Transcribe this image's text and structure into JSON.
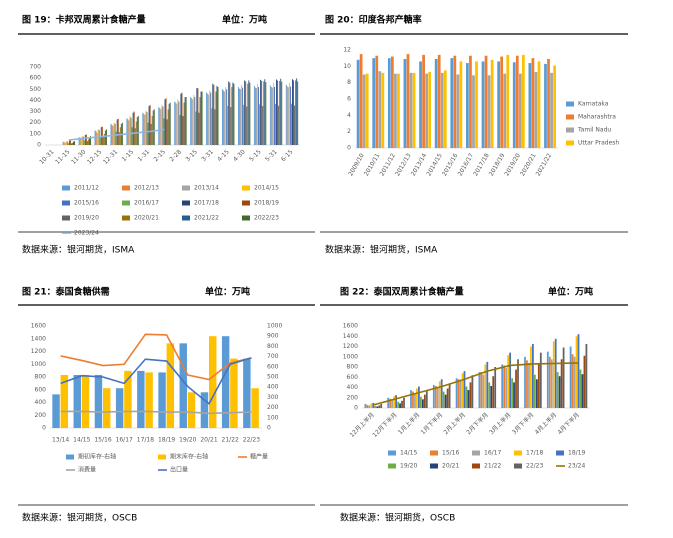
{
  "chart_data": [
    {
      "type": "bar",
      "title": "图 19：卡邦双周累计食糖产量",
      "unit": "单位：万吨",
      "source": "数据来源：银河期货，ISMA",
      "categories": [
        "10-31",
        "11-15",
        "11-30",
        "12-15",
        "12-31",
        "1-15",
        "1-31",
        "2-15",
        "2-28",
        "3-15",
        "3-31",
        "4-15",
        "4-30",
        "5-15",
        "5-31",
        "6-15"
      ],
      "ylim": [
        0,
        700
      ],
      "yticks": [
        0,
        100,
        200,
        300,
        400,
        500,
        600,
        700
      ],
      "grid": false,
      "series": [
        {
          "name": "2011/12",
          "color": "#5b9bd5",
          "values": [
            null,
            30,
            70,
            130,
            190,
            240,
            290,
            340,
            390,
            430,
            470,
            500,
            520,
            530,
            535,
            540
          ]
        },
        {
          "name": "2012/13",
          "color": "#ed7d31",
          "values": [
            null,
            25,
            65,
            125,
            180,
            230,
            280,
            330,
            380,
            420,
            460,
            490,
            505,
            515,
            520,
            525
          ]
        },
        {
          "name": "2013/14",
          "color": "#a5a5a5",
          "values": [
            null,
            20,
            55,
            110,
            170,
            220,
            270,
            320,
            370,
            410,
            450,
            480,
            500,
            510,
            515,
            518
          ]
        },
        {
          "name": "2014/15",
          "color": "#ffc000",
          "values": [
            null,
            35,
            80,
            140,
            200,
            260,
            310,
            360,
            410,
            450,
            490,
            520,
            540,
            550,
            555,
            560
          ]
        },
        {
          "name": "2015/16",
          "color": "#4472c4",
          "values": [
            null,
            30,
            75,
            135,
            190,
            245,
            295,
            345,
            390,
            430,
            470,
            500,
            515,
            520,
            522,
            525
          ]
        },
        {
          "name": "2016/17",
          "color": "#70ad47",
          "values": [
            null,
            15,
            40,
            80,
            120,
            160,
            200,
            240,
            270,
            300,
            330,
            350,
            360,
            365,
            368,
            370
          ]
        },
        {
          "name": "2017/18",
          "color": "#264478",
          "values": [
            null,
            40,
            90,
            160,
            230,
            290,
            350,
            410,
            460,
            510,
            550,
            570,
            580,
            585,
            588,
            590
          ]
        },
        {
          "name": "2018/19",
          "color": "#9e480e",
          "values": [
            null,
            45,
            95,
            165,
            235,
            300,
            360,
            420,
            470,
            510,
            540,
            560,
            570,
            575,
            578,
            580
          ]
        },
        {
          "name": "2019/20",
          "color": "#636363",
          "values": [
            null,
            15,
            35,
            75,
            115,
            150,
            190,
            230,
            260,
            290,
            320,
            340,
            345,
            350,
            352,
            355
          ]
        },
        {
          "name": "2020/21",
          "color": "#997300",
          "values": [
            null,
            20,
            50,
            100,
            160,
            210,
            260,
            320,
            380,
            430,
            480,
            520,
            550,
            570,
            575,
            580
          ]
        },
        {
          "name": "2021/22",
          "color": "#255e91",
          "values": [
            null,
            30,
            70,
            130,
            190,
            250,
            310,
            370,
            430,
            480,
            530,
            560,
            580,
            590,
            595,
            598
          ]
        },
        {
          "name": "2022/23",
          "color": "#43682b",
          "values": [
            null,
            35,
            80,
            140,
            200,
            260,
            320,
            380,
            430,
            480,
            520,
            550,
            560,
            565,
            568,
            570
          ]
        },
        {
          "name": "2023/24",
          "color": "#8fb4e3",
          "type": "line",
          "values": [
            null,
            45,
            60,
            75,
            90,
            105,
            120,
            140,
            null,
            null,
            null,
            null,
            null,
            null,
            null,
            null
          ]
        }
      ]
    },
    {
      "type": "bar",
      "title": "图 20：印度各邦产糖率",
      "source": "数据来源：银河期货，ISMA",
      "categories": [
        "2009/10",
        "2010/11",
        "2011/12",
        "2012/13",
        "2013/14",
        "2014/15",
        "2015/16",
        "2016/17",
        "2017/18",
        "2018/19",
        "2019/20",
        "2020/21",
        "2021/22"
      ],
      "ylim": [
        0,
        12
      ],
      "yticks": [
        0,
        2,
        4,
        6,
        8,
        10,
        12
      ],
      "grid": false,
      "series": [
        {
          "name": "Karnataka",
          "color": "#5b9bd5",
          "values": [
            10.8,
            11.0,
            11.0,
            10.9,
            10.6,
            10.9,
            11.0,
            10.4,
            10.6,
            10.6,
            10.5,
            10.4,
            10.3
          ]
        },
        {
          "name": "Maharashtra",
          "color": "#ed7d31",
          "values": [
            11.5,
            11.3,
            11.2,
            11.5,
            11.4,
            11.4,
            11.3,
            11.3,
            11.3,
            11.2,
            11.3,
            11.0,
            10.9
          ]
        },
        {
          "name": "Tamil Nadu",
          "color": "#a5a5a5",
          "values": [
            9.0,
            9.4,
            9.1,
            9.2,
            9.1,
            9.2,
            9.0,
            8.9,
            8.9,
            9.1,
            9.1,
            9.3,
            9.2
          ]
        },
        {
          "name": "Uttar Pradesh",
          "color": "#ffc000",
          "values": [
            9.1,
            9.2,
            9.1,
            9.2,
            9.3,
            9.5,
            10.6,
            10.6,
            10.8,
            11.4,
            11.4,
            10.6,
            10.1
          ]
        }
      ]
    },
    {
      "type": "bar",
      "title": "图 21：泰国食糖供需",
      "unit": "单位：万吨",
      "source": "数据来源：银河期货，OSCB",
      "categories": [
        "13/14",
        "14/15",
        "15/16",
        "16/17",
        "17/18",
        "18/19",
        "19/20",
        "20/21",
        "21/22",
        "22/23"
      ],
      "ylim": [
        0,
        1600
      ],
      "yticks": [
        0,
        200,
        400,
        600,
        800,
        1000,
        1200,
        1400,
        1600
      ],
      "y2lim": [
        0,
        1000
      ],
      "y2ticks": [
        0,
        100,
        200,
        300,
        400,
        500,
        600,
        700,
        800,
        900,
        1000
      ],
      "grid": false,
      "series": [
        {
          "name": "期初库存-右轴",
          "color": "#5b9bd5",
          "axis": "y2",
          "values": [
            330,
            520,
            520,
            390,
            560,
            545,
            830,
            350,
            900,
            680
          ]
        },
        {
          "name": "期末库存-右轴",
          "color": "#ffc000",
          "axis": "y2",
          "values": [
            520,
            520,
            390,
            560,
            545,
            830,
            350,
            900,
            680,
            390
          ]
        },
        {
          "name": "糖产量",
          "color": "#ed7d31",
          "type": "line",
          "values": [
            1130,
            1060,
            980,
            1000,
            1470,
            1460,
            830,
            760,
            1020,
            1100
          ]
        },
        {
          "name": "消费量",
          "color": "#a5a5a5",
          "type": "line",
          "values": [
            260,
            260,
            250,
            260,
            260,
            250,
            250,
            230,
            240,
            250
          ]
        },
        {
          "name": "出口量",
          "color": "#4472c4",
          "type": "line",
          "values": [
            700,
            820,
            800,
            700,
            1080,
            1050,
            650,
            380,
            1000,
            1100
          ]
        }
      ]
    },
    {
      "type": "bar",
      "title": "图 22：泰国双周累计食糖产量",
      "unit": "单位：万吨",
      "source": "数据来源：银河期货，OSCB",
      "categories": [
        "12月上半月",
        "12月下半月",
        "1月上半月",
        "1月下半月",
        "2月上半月",
        "2月下半月",
        "3月上半月",
        "3月下半月",
        "4月上半月",
        "4月下半月"
      ],
      "ylim": [
        0,
        1600
      ],
      "yticks": [
        0,
        200,
        400,
        600,
        800,
        1000,
        1200,
        1400,
        1600
      ],
      "grid": false,
      "series": [
        {
          "name": "14/15",
          "color": "#5b9bd5",
          "values": [
            80,
            200,
            350,
            450,
            580,
            700,
            850,
            1000,
            1100,
            1200
          ]
        },
        {
          "name": "15/16",
          "color": "#ed7d31",
          "values": [
            60,
            180,
            320,
            430,
            560,
            700,
            830,
            930,
            1000,
            1050
          ]
        },
        {
          "name": "16/17",
          "color": "#a5a5a5",
          "values": [
            50,
            150,
            280,
            400,
            520,
            650,
            780,
            880,
            950,
            1000
          ]
        },
        {
          "name": "17/18",
          "color": "#ffc000",
          "values": [
            90,
            230,
            380,
            520,
            680,
            850,
            1030,
            1200,
            1300,
            1400
          ]
        },
        {
          "name": "18/19",
          "color": "#4472c4",
          "values": [
            100,
            250,
            420,
            560,
            720,
            900,
            1080,
            1250,
            1350,
            1440
          ]
        },
        {
          "name": "19/20",
          "color": "#70ad47",
          "values": [
            40,
            120,
            220,
            320,
            420,
            500,
            580,
            650,
            700,
            750
          ]
        },
        {
          "name": "20/21",
          "color": "#264478",
          "values": [
            30,
            90,
            170,
            260,
            350,
            430,
            500,
            560,
            620,
            660
          ]
        },
        {
          "name": "21/22",
          "color": "#9e480e",
          "values": [
            50,
            140,
            260,
            380,
            500,
            620,
            750,
            850,
            950,
            1020
          ]
        },
        {
          "name": "22/23",
          "color": "#636363",
          "values": [
            80,
            200,
            340,
            480,
            640,
            800,
            950,
            1080,
            1180,
            1250
          ]
        },
        {
          "name": "23/24",
          "color": "#997300",
          "type": "line",
          "values": [
            60,
            180,
            300,
            420,
            560,
            720,
            830,
            860,
            870,
            880
          ]
        }
      ]
    }
  ]
}
